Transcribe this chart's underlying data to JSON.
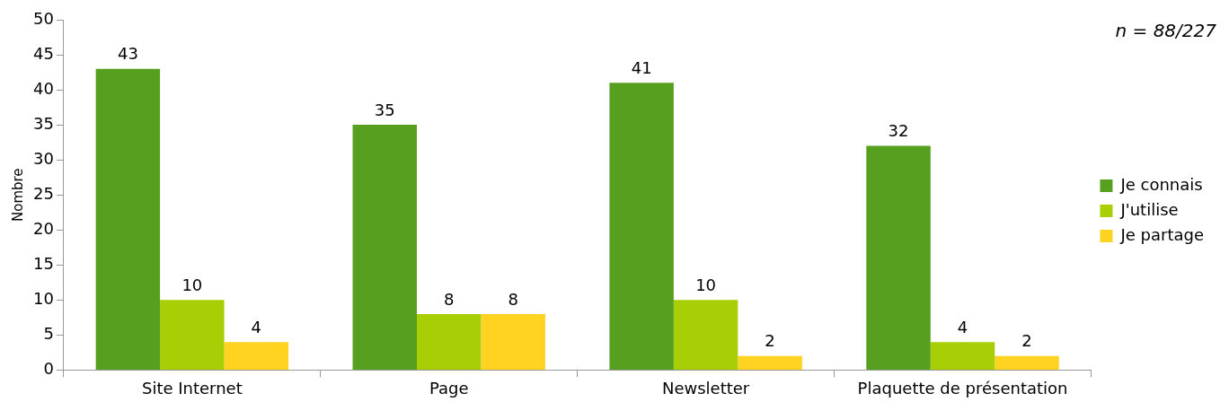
{
  "chart_data": {
    "type": "bar",
    "ylabel": "Nombre",
    "categories": [
      "Site Internet",
      "Page",
      "Newsletter",
      "Plaquette de présentation"
    ],
    "series": [
      {
        "name": "Je connais",
        "color": "#579f1f",
        "values": [
          43,
          35,
          41,
          32
        ]
      },
      {
        "name": "J'utilise",
        "color": "#a8cf06",
        "values": [
          10,
          8,
          10,
          4
        ]
      },
      {
        "name": "Je partage",
        "color": "#ffd320",
        "values": [
          4,
          8,
          2,
          2
        ]
      }
    ],
    "ylim": [
      0,
      50
    ],
    "yticks": [
      0,
      5,
      10,
      15,
      20,
      25,
      30,
      35,
      40,
      45,
      50
    ],
    "grid": false,
    "legend": "right",
    "data_labels": true,
    "annotations": [
      "n = 88/227"
    ]
  }
}
